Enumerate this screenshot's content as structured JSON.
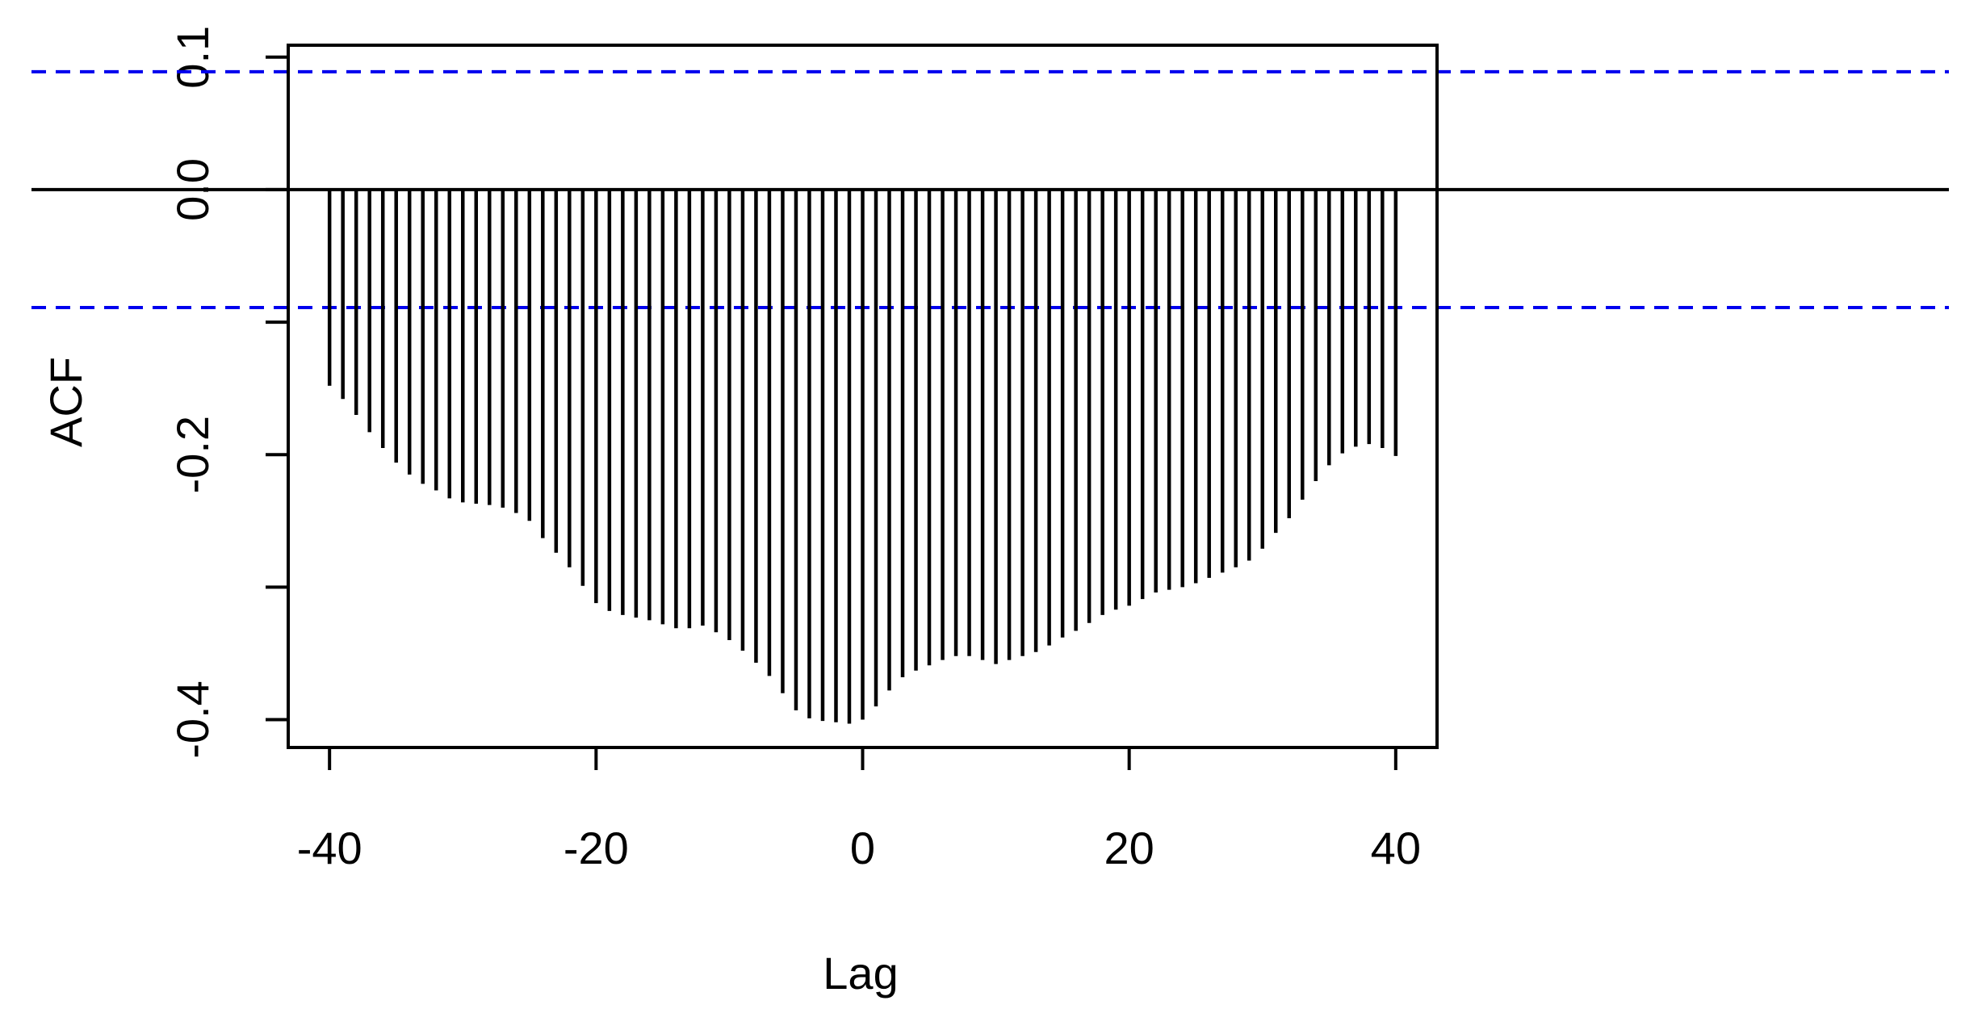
{
  "chart_data": {
    "type": "acf",
    "xlabel": "Lag",
    "ylabel": "ACF",
    "x": [
      -40,
      -39,
      -38,
      -37,
      -36,
      -35,
      -34,
      -33,
      -32,
      -31,
      -30,
      -29,
      -28,
      -27,
      -26,
      -25,
      -24,
      -23,
      -22,
      -21,
      -20,
      -19,
      -18,
      -17,
      -16,
      -15,
      -14,
      -13,
      -12,
      -11,
      -10,
      -9,
      -8,
      -7,
      -6,
      -5,
      -4,
      -3,
      -2,
      -1,
      0,
      1,
      2,
      3,
      4,
      5,
      6,
      7,
      8,
      9,
      10,
      11,
      12,
      13,
      14,
      15,
      16,
      17,
      18,
      19,
      20,
      21,
      22,
      23,
      24,
      25,
      26,
      27,
      28,
      29,
      30,
      31,
      32,
      33,
      34,
      35,
      36,
      37,
      38,
      39,
      40
    ],
    "values": [
      -0.148,
      -0.158,
      -0.17,
      -0.183,
      -0.195,
      -0.206,
      -0.215,
      -0.222,
      -0.227,
      -0.233,
      -0.236,
      -0.237,
      -0.238,
      -0.24,
      -0.244,
      -0.25,
      -0.263,
      -0.274,
      -0.285,
      -0.299,
      -0.312,
      -0.318,
      -0.321,
      -0.323,
      -0.325,
      -0.328,
      -0.331,
      -0.331,
      -0.329,
      -0.334,
      -0.34,
      -0.348,
      -0.357,
      -0.367,
      -0.38,
      -0.393,
      -0.399,
      -0.401,
      -0.402,
      -0.403,
      -0.4,
      -0.39,
      -0.378,
      -0.368,
      -0.363,
      -0.359,
      -0.355,
      -0.352,
      -0.352,
      -0.355,
      -0.358,
      -0.355,
      -0.352,
      -0.349,
      -0.344,
      -0.338,
      -0.333,
      -0.327,
      -0.321,
      -0.317,
      -0.314,
      -0.309,
      -0.304,
      -0.302,
      -0.3,
      -0.297,
      -0.293,
      -0.289,
      -0.285,
      -0.28,
      -0.271,
      -0.259,
      -0.248,
      -0.234,
      -0.22,
      -0.208,
      -0.199,
      -0.194,
      -0.192,
      -0.195,
      -0.201
    ],
    "color": "#000000",
    "ci_lines": [
      0.089,
      -0.089
    ],
    "ci_color": "#0000ee",
    "xlim": [
      -43.1,
      43.1
    ],
    "ylim": [
      -0.421,
      0.109
    ],
    "xticks": [
      -40,
      -20,
      0,
      20,
      40
    ],
    "yticks": [
      0.1,
      {
        "value": 0,
        "label": "0.0"
      },
      {
        "value": -0.1,
        "label": null
      },
      -0.2,
      {
        "value": -0.3,
        "label": null
      },
      -0.4
    ]
  }
}
